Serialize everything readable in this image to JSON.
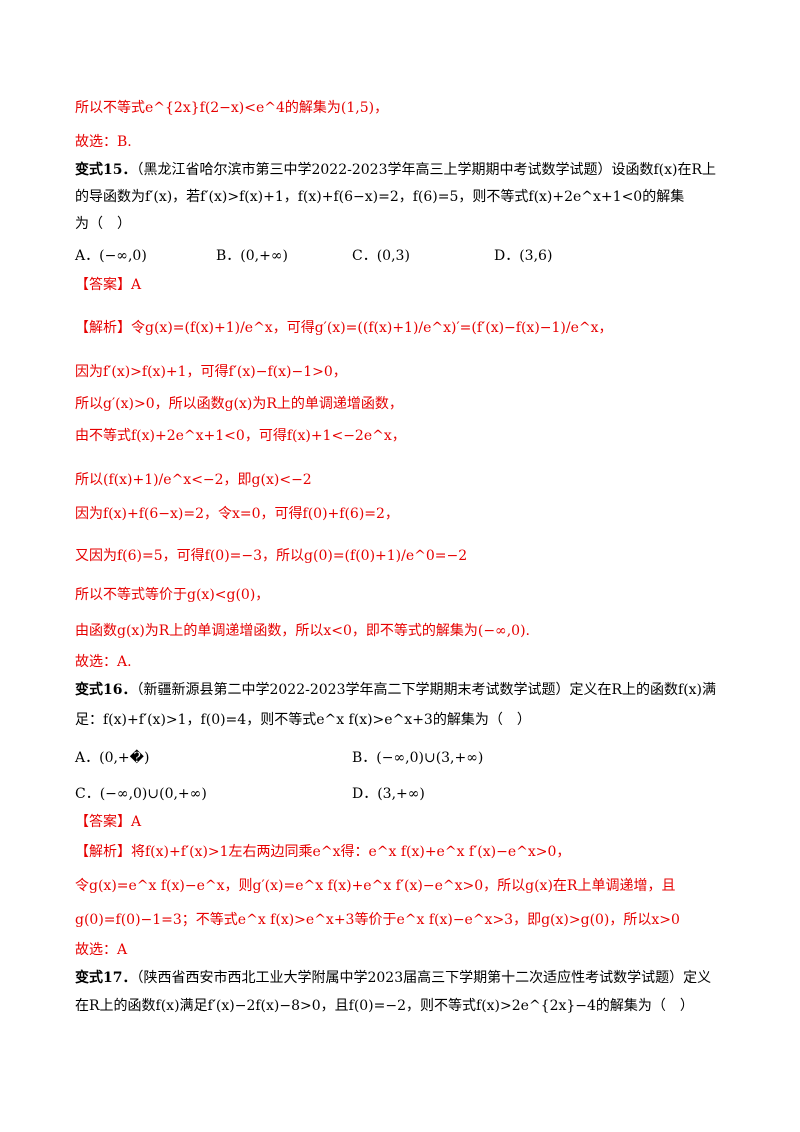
{
  "colors": {
    "answer_red": "#e60000",
    "text": "#000000"
  },
  "lines": {
    "l1": "所以不等式e^{2x}f(2−x)<e^4的解集为(1,5)，",
    "l2": "故选：B.",
    "v15_label": "变式15．",
    "v15_src": "（黑龙江省哈尔滨市第三中学2022-2023学年高三上学期期中考试数学试题）设函数f(x)在R上",
    "v15_line2": "的导函数为f′(x)，若f′(x)>f(x)+1，f(x)+f(6−x)=2，f(6)=5，则不等式f(x)+2e^x+1<0的解集",
    "v15_line3": "为（　）",
    "v15_A": "A．(−∞,0)",
    "v15_B": "B．(0,+∞)",
    "v15_C": "C．(0,3)",
    "v15_D": "D．(3,6)",
    "ans15": "【答案】A",
    "s1": "【解析】令g(x)=(f(x)+1)/e^x，可得g′(x)=((f(x)+1)/e^x)′=(f′(x)−f(x)−1)/e^x，",
    "s2": "因为f′(x)>f(x)+1，可得f′(x)−f(x)−1>0，",
    "s3": "所以g′(x)>0，所以函数g(x)为R上的单调递增函数，",
    "s4": "由不等式f(x)+2e^x+1<0，可得f(x)+1<−2e^x，",
    "s5": "所以(f(x)+1)/e^x<−2，即g(x)<−2",
    "s6": "因为f(x)+f(6−x)=2，令x=0，可得f(0)+f(6)=2，",
    "s7": "又因为f(6)=5，可得f(0)=−3，所以g(0)=(f(0)+1)/e^0=−2",
    "s8": "所以不等式等价于g(x)<g(0)，",
    "s9": "由函数g(x)为R上的单调递增函数，所以x<0，即不等式的解集为(−∞,0).",
    "s10": "故选：A.",
    "v16_label": "变式16．",
    "v16_src": "（新疆新源县第二中学2022-2023学年高二下学期期末考试数学试题）定义在R上的函数f(x)满",
    "v16_line2": "足：f(x)+f′(x)>1，f(0)=4，则不等式e^x f(x)>e^x+3的解集为（　）",
    "v16_A": "A．(0,+�)",
    "v16_B": "B．(−∞,0)∪(3,+∞)",
    "v16_C": "C．(−∞,0)∪(0,+∞)",
    "v16_D": "D．(3,+∞)",
    "ans16": "【答案】A",
    "t1": "【解析】将f(x)+f′(x)>1左右两边同乘e^x得：e^x f(x)+e^x f′(x)−e^x>0，",
    "t2": "令g(x)=e^x f(x)−e^x，则g′(x)=e^x f(x)+e^x f′(x)−e^x>0，所以g(x)在R上单调递增，且",
    "t3": "g(0)=f(0)−1=3；不等式e^x f(x)>e^x+3等价于e^x f(x)−e^x>3，即g(x)>g(0)，所以x>0",
    "t4": "故选：A",
    "v17_label": "变式17．",
    "v17_src": "（陕西省西安市西北工业大学附属中学2023届高三下学期第十二次适应性考试数学试题）定义",
    "v17_line2": "在R上的函数f(x)满足f′(x)−2f(x)−8>0，且f(0)=−2，则不等式f(x)>2e^{2x}−4的解集为（　）"
  }
}
